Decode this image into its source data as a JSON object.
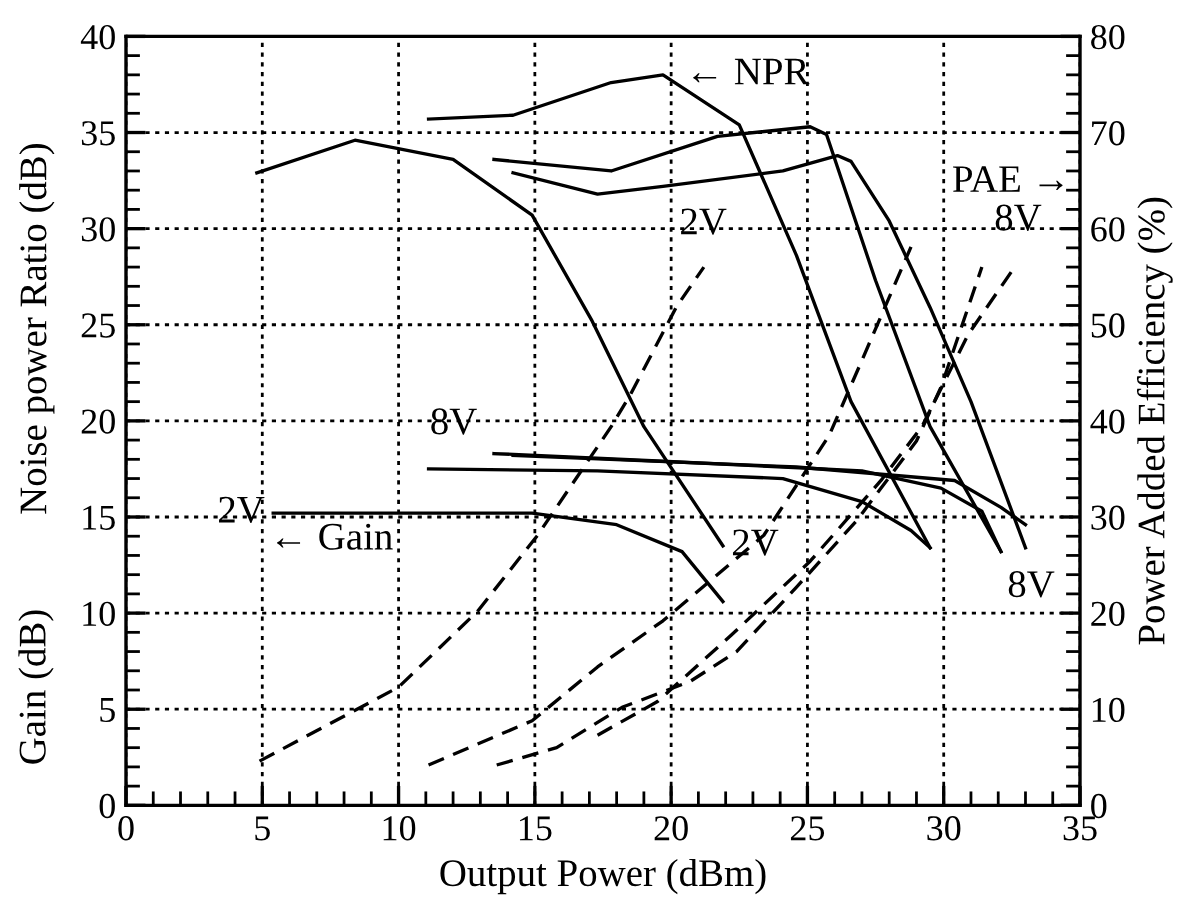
{
  "chart_data": {
    "type": "line",
    "xlabel": "Output Power (dBm)",
    "ylabel": "Noise power Ratio (dB)",
    "y2label": "Power Added Efficiency (%)",
    "xlim": [
      0,
      35
    ],
    "xticks": [
      0,
      5,
      10,
      15,
      20,
      25,
      30,
      35
    ],
    "ylim": [
      0,
      40
    ],
    "yticks": [
      0,
      5,
      10,
      15,
      20,
      25,
      30,
      35,
      40
    ],
    "y2lim": [
      0,
      80
    ],
    "y2ticks": [
      0,
      10,
      20,
      30,
      40,
      50,
      60,
      70,
      80
    ],
    "grid": true,
    "marker": "none",
    "series": [
      {
        "color": "#000000",
        "line_style": "solid",
        "x": [
          4.8,
          8.4,
          12,
          14.9,
          17.1,
          19,
          21.9
        ],
        "values": [
          32.9,
          34.6,
          33.6,
          30.7,
          25.2,
          19.7,
          13.5
        ]
      },
      {
        "color": "#000000",
        "line_style": "solid",
        "x": [
          11.1,
          14.2,
          17.8,
          19.7,
          22.5,
          24.6,
          26.6,
          29.5
        ],
        "values": [
          35.7,
          35.9,
          37.6,
          38,
          35.4,
          28.6,
          21,
          13.4
        ]
      },
      {
        "color": "#000000",
        "line_style": "solid",
        "x": [
          13.5,
          17.8,
          21.7,
          25.1,
          25.7,
          27.5,
          29.5,
          32.1
        ],
        "values": [
          33.6,
          33,
          34.8,
          35.3,
          34.9,
          27.3,
          19.7,
          13.2
        ]
      },
      {
        "color": "#000000",
        "line_style": "solid",
        "x": [
          14.2,
          17.3,
          19.7,
          24.1,
          26.1,
          26.6,
          28,
          29.5,
          31,
          33
        ],
        "values": [
          32.9,
          31.8,
          32.2,
          33,
          33.8,
          33.5,
          30.4,
          25.9,
          21,
          13.4
        ]
      },
      {
        "color": "#000000",
        "line_style": "solid",
        "x": [
          5.4,
          14.9,
          18,
          20.4,
          21.9
        ],
        "values": [
          15.2,
          15.2,
          14.6,
          13.2,
          10.6
        ]
      },
      {
        "color": "#000000",
        "line_style": "solid",
        "x": [
          11.1,
          17.3,
          24.1,
          27,
          28.8,
          29.5
        ],
        "values": [
          17.5,
          17.4,
          17,
          15.8,
          14.3,
          13.4
        ]
      },
      {
        "color": "#000000",
        "line_style": "solid",
        "x": [
          13.5,
          19.7,
          27,
          29.9,
          31.4,
          32.1
        ],
        "values": [
          18.3,
          17.9,
          17.4,
          16.5,
          15.3,
          13.2
        ]
      },
      {
        "color": "#000000",
        "line_style": "solid",
        "x": [
          14.2,
          24.6,
          30.4,
          32.1,
          33
        ],
        "values": [
          18.2,
          17.6,
          16.9,
          15.5,
          14.6
        ]
      },
      {
        "color": "#000000",
        "line_style": "dashed",
        "axis": "y2",
        "x": [
          4.9,
          10,
          12.9,
          15.1,
          17.8,
          18.5,
          20.2,
          21.2
        ],
        "values": [
          4.6,
          12.3,
          20.2,
          28.1,
          39.4,
          42.7,
          51.9,
          56
        ]
      },
      {
        "color": "#000000",
        "line_style": "dashed",
        "axis": "y2",
        "x": [
          11.1,
          14.9,
          17.3,
          19.7,
          23.4,
          25.8,
          27,
          28.8
        ],
        "values": [
          4.2,
          8.8,
          14.4,
          19.2,
          28.1,
          38.5,
          46.3,
          58.1
        ]
      },
      {
        "color": "#000000",
        "line_style": "dashed",
        "axis": "y2",
        "x": [
          13.6,
          15.8,
          18.2,
          20.7,
          22.4,
          24.6,
          26.8,
          29,
          29.9,
          31.4
        ],
        "values": [
          4.2,
          6,
          10.2,
          12.9,
          16,
          22.7,
          29.6,
          37.9,
          43.5,
          56
        ]
      },
      {
        "color": "#000000",
        "line_style": "dashed",
        "axis": "y2",
        "x": [
          17.3,
          19.5,
          22.2,
          25.1,
          27.7,
          29.2,
          30.9,
          32.6
        ],
        "values": [
          7.3,
          10.8,
          17.7,
          25.4,
          33.8,
          39.4,
          49,
          56
        ]
      }
    ],
    "annotations": [
      {
        "text": "← NPR",
        "x": 19.7,
        "y": 38
      },
      {
        "text": "2V",
        "x": 5.4,
        "y": 15.2
      },
      {
        "text": "8V",
        "x": 13.5,
        "y": 18.3
      },
      {
        "text": "2V",
        "x": 21.9,
        "y": 13.5
      },
      {
        "text": "8V",
        "x": 33,
        "y": 13.4
      },
      "PAE →",
      "← Gain",
      "2V",
      "8V",
      "Gain (dB)"
    ]
  }
}
